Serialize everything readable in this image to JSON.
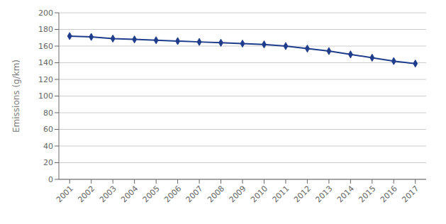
{
  "chart_data": {
    "type": "line",
    "x": [
      2001,
      2002,
      2003,
      2004,
      2005,
      2006,
      2007,
      2008,
      2009,
      2010,
      2011,
      2012,
      2013,
      2014,
      2015,
      2016,
      2017
    ],
    "values": [
      172,
      171,
      169,
      168,
      167,
      166,
      165,
      164,
      163,
      162,
      160,
      157,
      154,
      150,
      146,
      142,
      139
    ],
    "color": "#1F3D8C",
    "marker": "diamond",
    "ylabel": "Emissions (g/km)",
    "xlim": [
      2000.5,
      2017.5
    ],
    "xticks": [
      2001,
      2002,
      2003,
      2004,
      2005,
      2006,
      2007,
      2008,
      2009,
      2010,
      2011,
      2012,
      2013,
      2014,
      2015,
      2016,
      2017
    ],
    "ylim": [
      0,
      200
    ],
    "yticks": [
      0,
      20,
      40,
      60,
      80,
      100,
      120,
      140,
      160,
      180,
      200
    ],
    "grid": "y"
  }
}
